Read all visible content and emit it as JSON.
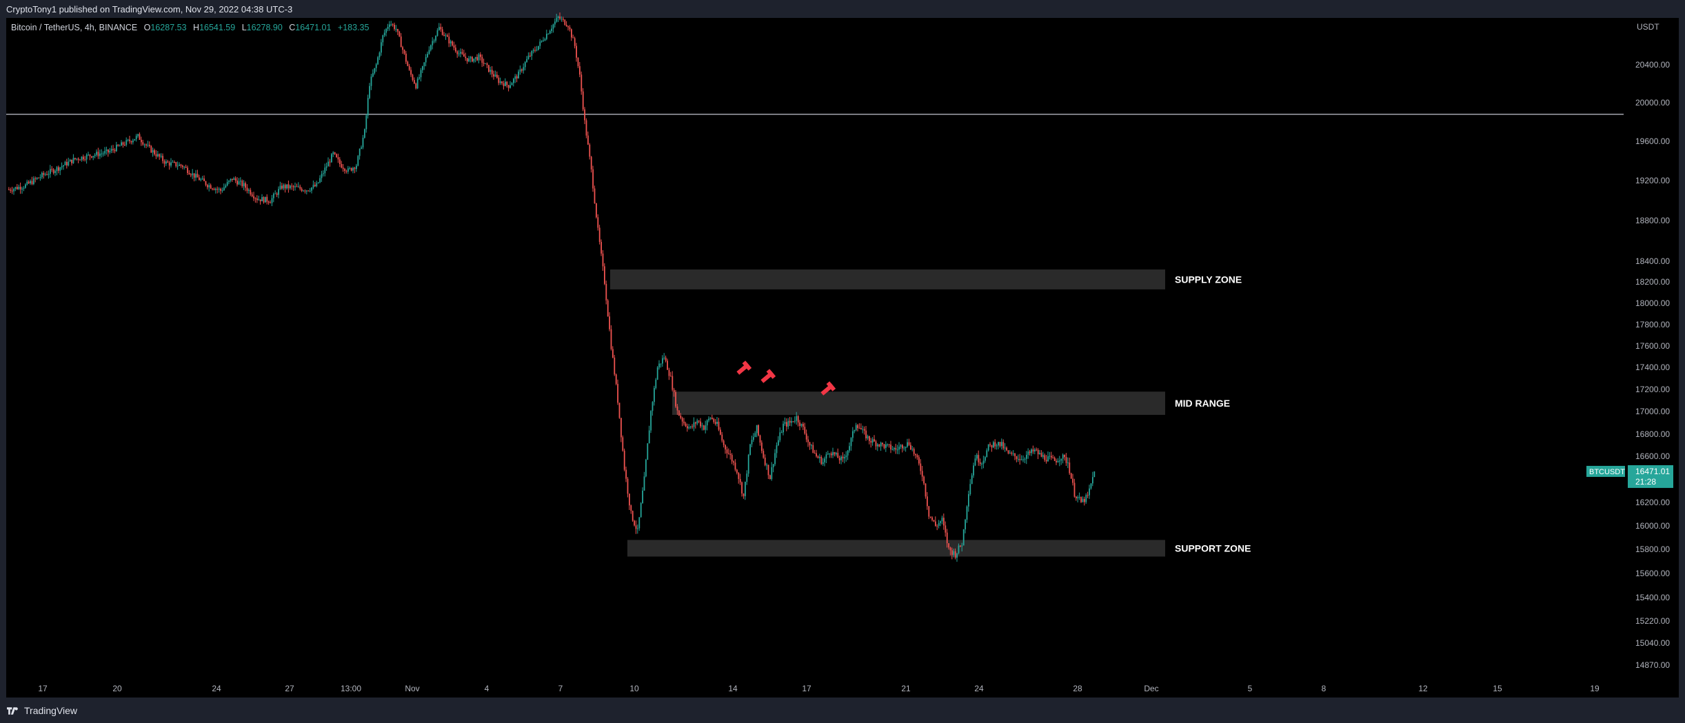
{
  "header": {
    "publisher_line": "CryptoTony1 published on TradingView.com, Nov 29, 2022 04:38 UTC-3"
  },
  "legend": {
    "symbol": "Bitcoin / TetherUS, 4h, BINANCE",
    "open_label": "O",
    "open": "16287.53",
    "high_label": "H",
    "high": "16541.59",
    "low_label": "L",
    "low": "16278.90",
    "close_label": "C",
    "close": "16471.01",
    "change": "+183.35"
  },
  "footer": {
    "brand": "TradingView"
  },
  "colors": {
    "up": "#26a69a",
    "down": "#ef5350",
    "background": "#000000",
    "zone_fill": "#2a2a2a",
    "price_tag": "#26a69a",
    "marker": "#f23645"
  },
  "chart_data": {
    "type": "candlestick",
    "symbol": "BTCUSDT",
    "interval": "4h",
    "exchange": "BINANCE",
    "currency": "USDT",
    "grid": false,
    "ylim": [
      14720,
      20950
    ],
    "y_ticks": [
      "20400.00",
      "20000.00",
      "19600.00",
      "19200.00",
      "18800.00",
      "18400.00",
      "18200.00",
      "18000.00",
      "17800.00",
      "17600.00",
      "17400.00",
      "17200.00",
      "17000.00",
      "16800.00",
      "16600.00",
      "16400.00",
      "16200.00",
      "16000.00",
      "15800.00",
      "15600.00",
      "15400.00",
      "15220.00",
      "15040.00",
      "14870.00"
    ],
    "x_ticks": [
      "17",
      "20",
      "24",
      "27",
      "13:00",
      "Nov",
      "4",
      "7",
      "10",
      "14",
      "17",
      "21",
      "24",
      "28",
      "Dec",
      "5",
      "8",
      "12",
      "15",
      "19"
    ],
    "horizontal_lines": [
      {
        "price": 19880
      }
    ],
    "zones": [
      {
        "label": "SUPPLY ZONE",
        "from": 18130,
        "to": 18320
      },
      {
        "label": "MID RANGE",
        "from": 16970,
        "to": 17180
      },
      {
        "label": "SUPPORT ZONE",
        "from": 15740,
        "to": 15880
      }
    ],
    "rejection_markers": [
      "Nov 14",
      "Nov 15",
      "Nov 17"
    ],
    "last_price": {
      "symbol": "BTCUSDT",
      "value": "16471.01",
      "countdown": "21:28"
    },
    "candles_points": [
      [
        0,
        19110
      ],
      [
        10,
        19150
      ],
      [
        20,
        19250
      ],
      [
        30,
        19330
      ],
      [
        40,
        19420
      ],
      [
        50,
        19460
      ],
      [
        60,
        19490
      ],
      [
        70,
        19580
      ],
      [
        78,
        19650
      ],
      [
        84,
        19540
      ],
      [
        95,
        19380
      ],
      [
        105,
        19350
      ],
      [
        112,
        19250
      ],
      [
        120,
        19160
      ],
      [
        128,
        19100
      ],
      [
        135,
        19220
      ],
      [
        142,
        19150
      ],
      [
        150,
        19020
      ],
      [
        158,
        19000
      ],
      [
        165,
        19140
      ],
      [
        172,
        19130
      ],
      [
        180,
        19110
      ],
      [
        186,
        19150
      ],
      [
        192,
        19350
      ],
      [
        196,
        19470
      ],
      [
        200,
        19370
      ],
      [
        205,
        19300
      ],
      [
        210,
        19360
      ],
      [
        215,
        19700
      ],
      [
        218,
        20200
      ],
      [
        222,
        20400
      ],
      [
        226,
        20700
      ],
      [
        230,
        20850
      ],
      [
        234,
        20780
      ],
      [
        238,
        20560
      ],
      [
        242,
        20330
      ],
      [
        246,
        20180
      ],
      [
        250,
        20360
      ],
      [
        254,
        20580
      ],
      [
        260,
        20790
      ],
      [
        266,
        20650
      ],
      [
        272,
        20520
      ],
      [
        278,
        20450
      ],
      [
        284,
        20480
      ],
      [
        290,
        20350
      ],
      [
        296,
        20230
      ],
      [
        302,
        20180
      ],
      [
        308,
        20300
      ],
      [
        314,
        20480
      ],
      [
        320,
        20600
      ],
      [
        326,
        20750
      ],
      [
        332,
        20900
      ],
      [
        338,
        20820
      ],
      [
        342,
        20600
      ],
      [
        345,
        20280
      ],
      [
        348,
        19800
      ],
      [
        352,
        19300
      ],
      [
        356,
        18700
      ],
      [
        360,
        18200
      ],
      [
        364,
        17600
      ],
      [
        368,
        17100
      ],
      [
        372,
        16500
      ],
      [
        376,
        16100
      ],
      [
        380,
        15950
      ],
      [
        384,
        16400
      ],
      [
        388,
        17000
      ],
      [
        392,
        17400
      ],
      [
        396,
        17500
      ],
      [
        400,
        17300
      ],
      [
        404,
        17000
      ],
      [
        408,
        16900
      ],
      [
        412,
        16850
      ],
      [
        416,
        16920
      ],
      [
        420,
        16860
      ],
      [
        424,
        16950
      ],
      [
        428,
        16880
      ],
      [
        432,
        16700
      ],
      [
        436,
        16600
      ],
      [
        440,
        16480
      ],
      [
        444,
        16250
      ],
      [
        448,
        16700
      ],
      [
        452,
        16850
      ],
      [
        456,
        16600
      ],
      [
        460,
        16420
      ],
      [
        464,
        16700
      ],
      [
        468,
        16880
      ],
      [
        472,
        16900
      ],
      [
        476,
        16950
      ],
      [
        480,
        16850
      ],
      [
        484,
        16700
      ],
      [
        488,
        16600
      ],
      [
        492,
        16550
      ],
      [
        496,
        16650
      ],
      [
        500,
        16600
      ],
      [
        504,
        16560
      ],
      [
        508,
        16700
      ],
      [
        512,
        16900
      ],
      [
        516,
        16820
      ],
      [
        520,
        16750
      ],
      [
        524,
        16720
      ],
      [
        528,
        16700
      ],
      [
        532,
        16680
      ],
      [
        536,
        16660
      ],
      [
        540,
        16700
      ],
      [
        544,
        16720
      ],
      [
        548,
        16600
      ],
      [
        552,
        16450
      ],
      [
        556,
        16100
      ],
      [
        560,
        16000
      ],
      [
        564,
        16050
      ],
      [
        568,
        15800
      ],
      [
        572,
        15760
      ],
      [
        576,
        15850
      ],
      [
        580,
        16300
      ],
      [
        584,
        16600
      ],
      [
        588,
        16550
      ],
      [
        592,
        16680
      ],
      [
        596,
        16720
      ],
      [
        600,
        16700
      ],
      [
        604,
        16620
      ],
      [
        608,
        16600
      ],
      [
        612,
        16580
      ],
      [
        616,
        16620
      ],
      [
        620,
        16650
      ],
      [
        624,
        16600
      ],
      [
        628,
        16580
      ],
      [
        632,
        16560
      ],
      [
        636,
        16600
      ],
      [
        640,
        16550
      ],
      [
        644,
        16280
      ],
      [
        648,
        16200
      ],
      [
        652,
        16250
      ],
      [
        656,
        16471.01
      ]
    ]
  }
}
